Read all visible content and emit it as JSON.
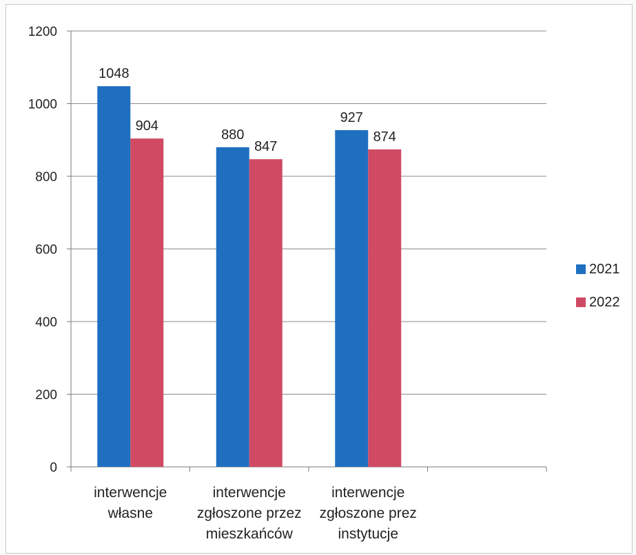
{
  "chart_data": {
    "type": "bar",
    "categories": [
      [
        "interwencje",
        "własne"
      ],
      [
        "interwencje",
        "zgłoszone przez",
        "mieszkańców"
      ],
      [
        "interwencje",
        "zgłoszone prez",
        "instytucje"
      ],
      [
        ""
      ]
    ],
    "series": [
      {
        "name": "2021",
        "color": "#1f6fc0",
        "values": [
          1048,
          880,
          927,
          null
        ]
      },
      {
        "name": "2022",
        "color": "#d04a63",
        "values": [
          904,
          847,
          874,
          null
        ]
      }
    ],
    "ylim": [
      0,
      1200
    ],
    "yticks": [
      0,
      200,
      400,
      600,
      800,
      1000,
      1200
    ],
    "grid": true,
    "legend": "right",
    "title": "",
    "xlabel": "",
    "ylabel": ""
  }
}
